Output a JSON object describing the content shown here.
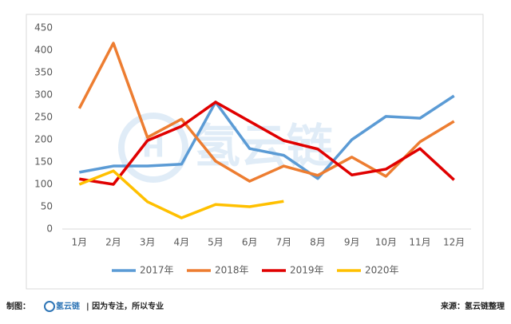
{
  "chart_data": {
    "type": "line",
    "categories": [
      "1月",
      "2月",
      "3月",
      "4月",
      "5月",
      "6月",
      "7月",
      "8月",
      "9月",
      "10月",
      "11月",
      "12月"
    ],
    "series": [
      {
        "name": "2017年",
        "color": "#5b9bd5",
        "values": [
          127,
          141,
          141,
          145,
          284,
          180,
          165,
          113,
          200,
          252,
          248,
          298
        ]
      },
      {
        "name": "2018年",
        "color": "#ed7d31",
        "values": [
          270,
          416,
          205,
          246,
          152,
          107,
          141,
          120,
          161,
          118,
          195,
          241
        ]
      },
      {
        "name": "2019年",
        "color": "#e00000",
        "values": [
          112,
          100,
          198,
          230,
          284,
          241,
          198,
          179,
          121,
          134,
          180,
          110
        ]
      },
      {
        "name": "2020年",
        "color": "#ffc000",
        "values": [
          100,
          130,
          61,
          25,
          55,
          50,
          62,
          null,
          null,
          null,
          null,
          null
        ]
      }
    ],
    "ylim": [
      0,
      450
    ],
    "yticks": [
      0,
      50,
      100,
      150,
      200,
      250,
      300,
      350,
      400,
      450
    ],
    "grid": false,
    "legend": "bottom",
    "watermark": "氢云链"
  },
  "footer": {
    "left": "制图：",
    "brand": "氢云链",
    "slogan": "| 因为专注，所以专业",
    "source": "来源：氢云链整理"
  }
}
